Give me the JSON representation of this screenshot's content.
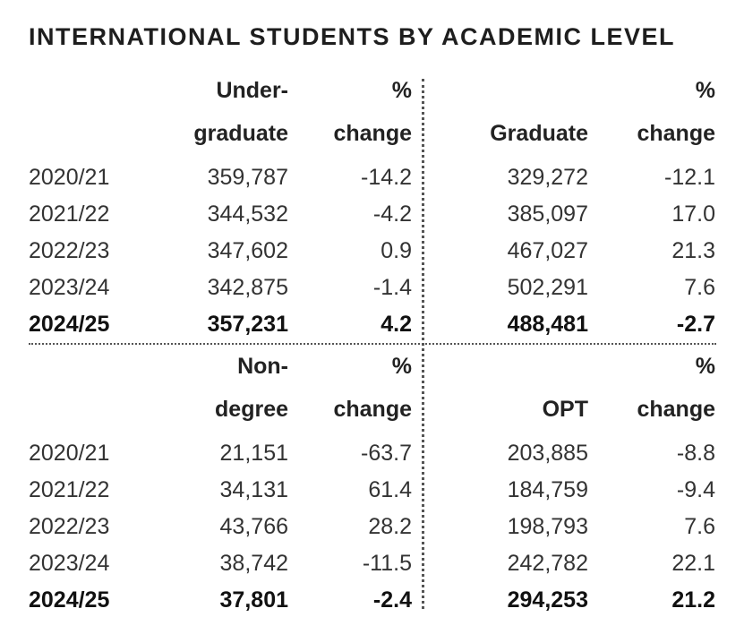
{
  "title": "INTERNATIONAL STUDENTS BY ACADEMIC LEVEL",
  "chart_data": {
    "type": "table",
    "title": "INTERNATIONAL STUDENTS BY ACADEMIC LEVEL",
    "panels": [
      {
        "left_header": [
          "Under-",
          "graduate"
        ],
        "left_change_header": [
          "%",
          "change"
        ],
        "right_header": [
          "",
          "Graduate"
        ],
        "right_change_header": [
          "%",
          "change"
        ],
        "rows": [
          {
            "year": "2020/21",
            "left": "359,787",
            "left_change": "-14.2",
            "right": "329,272",
            "right_change": "-12.1"
          },
          {
            "year": "2021/22",
            "left": "344,532",
            "left_change": "-4.2",
            "right": "385,097",
            "right_change": "17.0"
          },
          {
            "year": "2022/23",
            "left": "347,602",
            "left_change": "0.9",
            "right": "467,027",
            "right_change": "21.3"
          },
          {
            "year": "2023/24",
            "left": "342,875",
            "left_change": "-1.4",
            "right": "502,291",
            "right_change": "7.6"
          },
          {
            "year": "2024/25",
            "left": "357,231",
            "left_change": "4.2",
            "right": "488,481",
            "right_change": "-2.7"
          }
        ]
      },
      {
        "left_header": [
          "Non-",
          "degree"
        ],
        "left_change_header": [
          "%",
          "change"
        ],
        "right_header": [
          "",
          "OPT"
        ],
        "right_change_header": [
          "%",
          "change"
        ],
        "rows": [
          {
            "year": "2020/21",
            "left": "21,151",
            "left_change": "-63.7",
            "right": "203,885",
            "right_change": "-8.8"
          },
          {
            "year": "2021/22",
            "left": "34,131",
            "left_change": "61.4",
            "right": "184,759",
            "right_change": "-9.4"
          },
          {
            "year": "2022/23",
            "left": "43,766",
            "left_change": "28.2",
            "right": "198,793",
            "right_change": "7.6"
          },
          {
            "year": "2023/24",
            "left": "38,742",
            "left_change": "-11.5",
            "right": "242,782",
            "right_change": "22.1"
          },
          {
            "year": "2024/25",
            "left": "37,801",
            "left_change": "-2.4",
            "right": "294,253",
            "right_change": "21.2"
          }
        ]
      }
    ]
  }
}
